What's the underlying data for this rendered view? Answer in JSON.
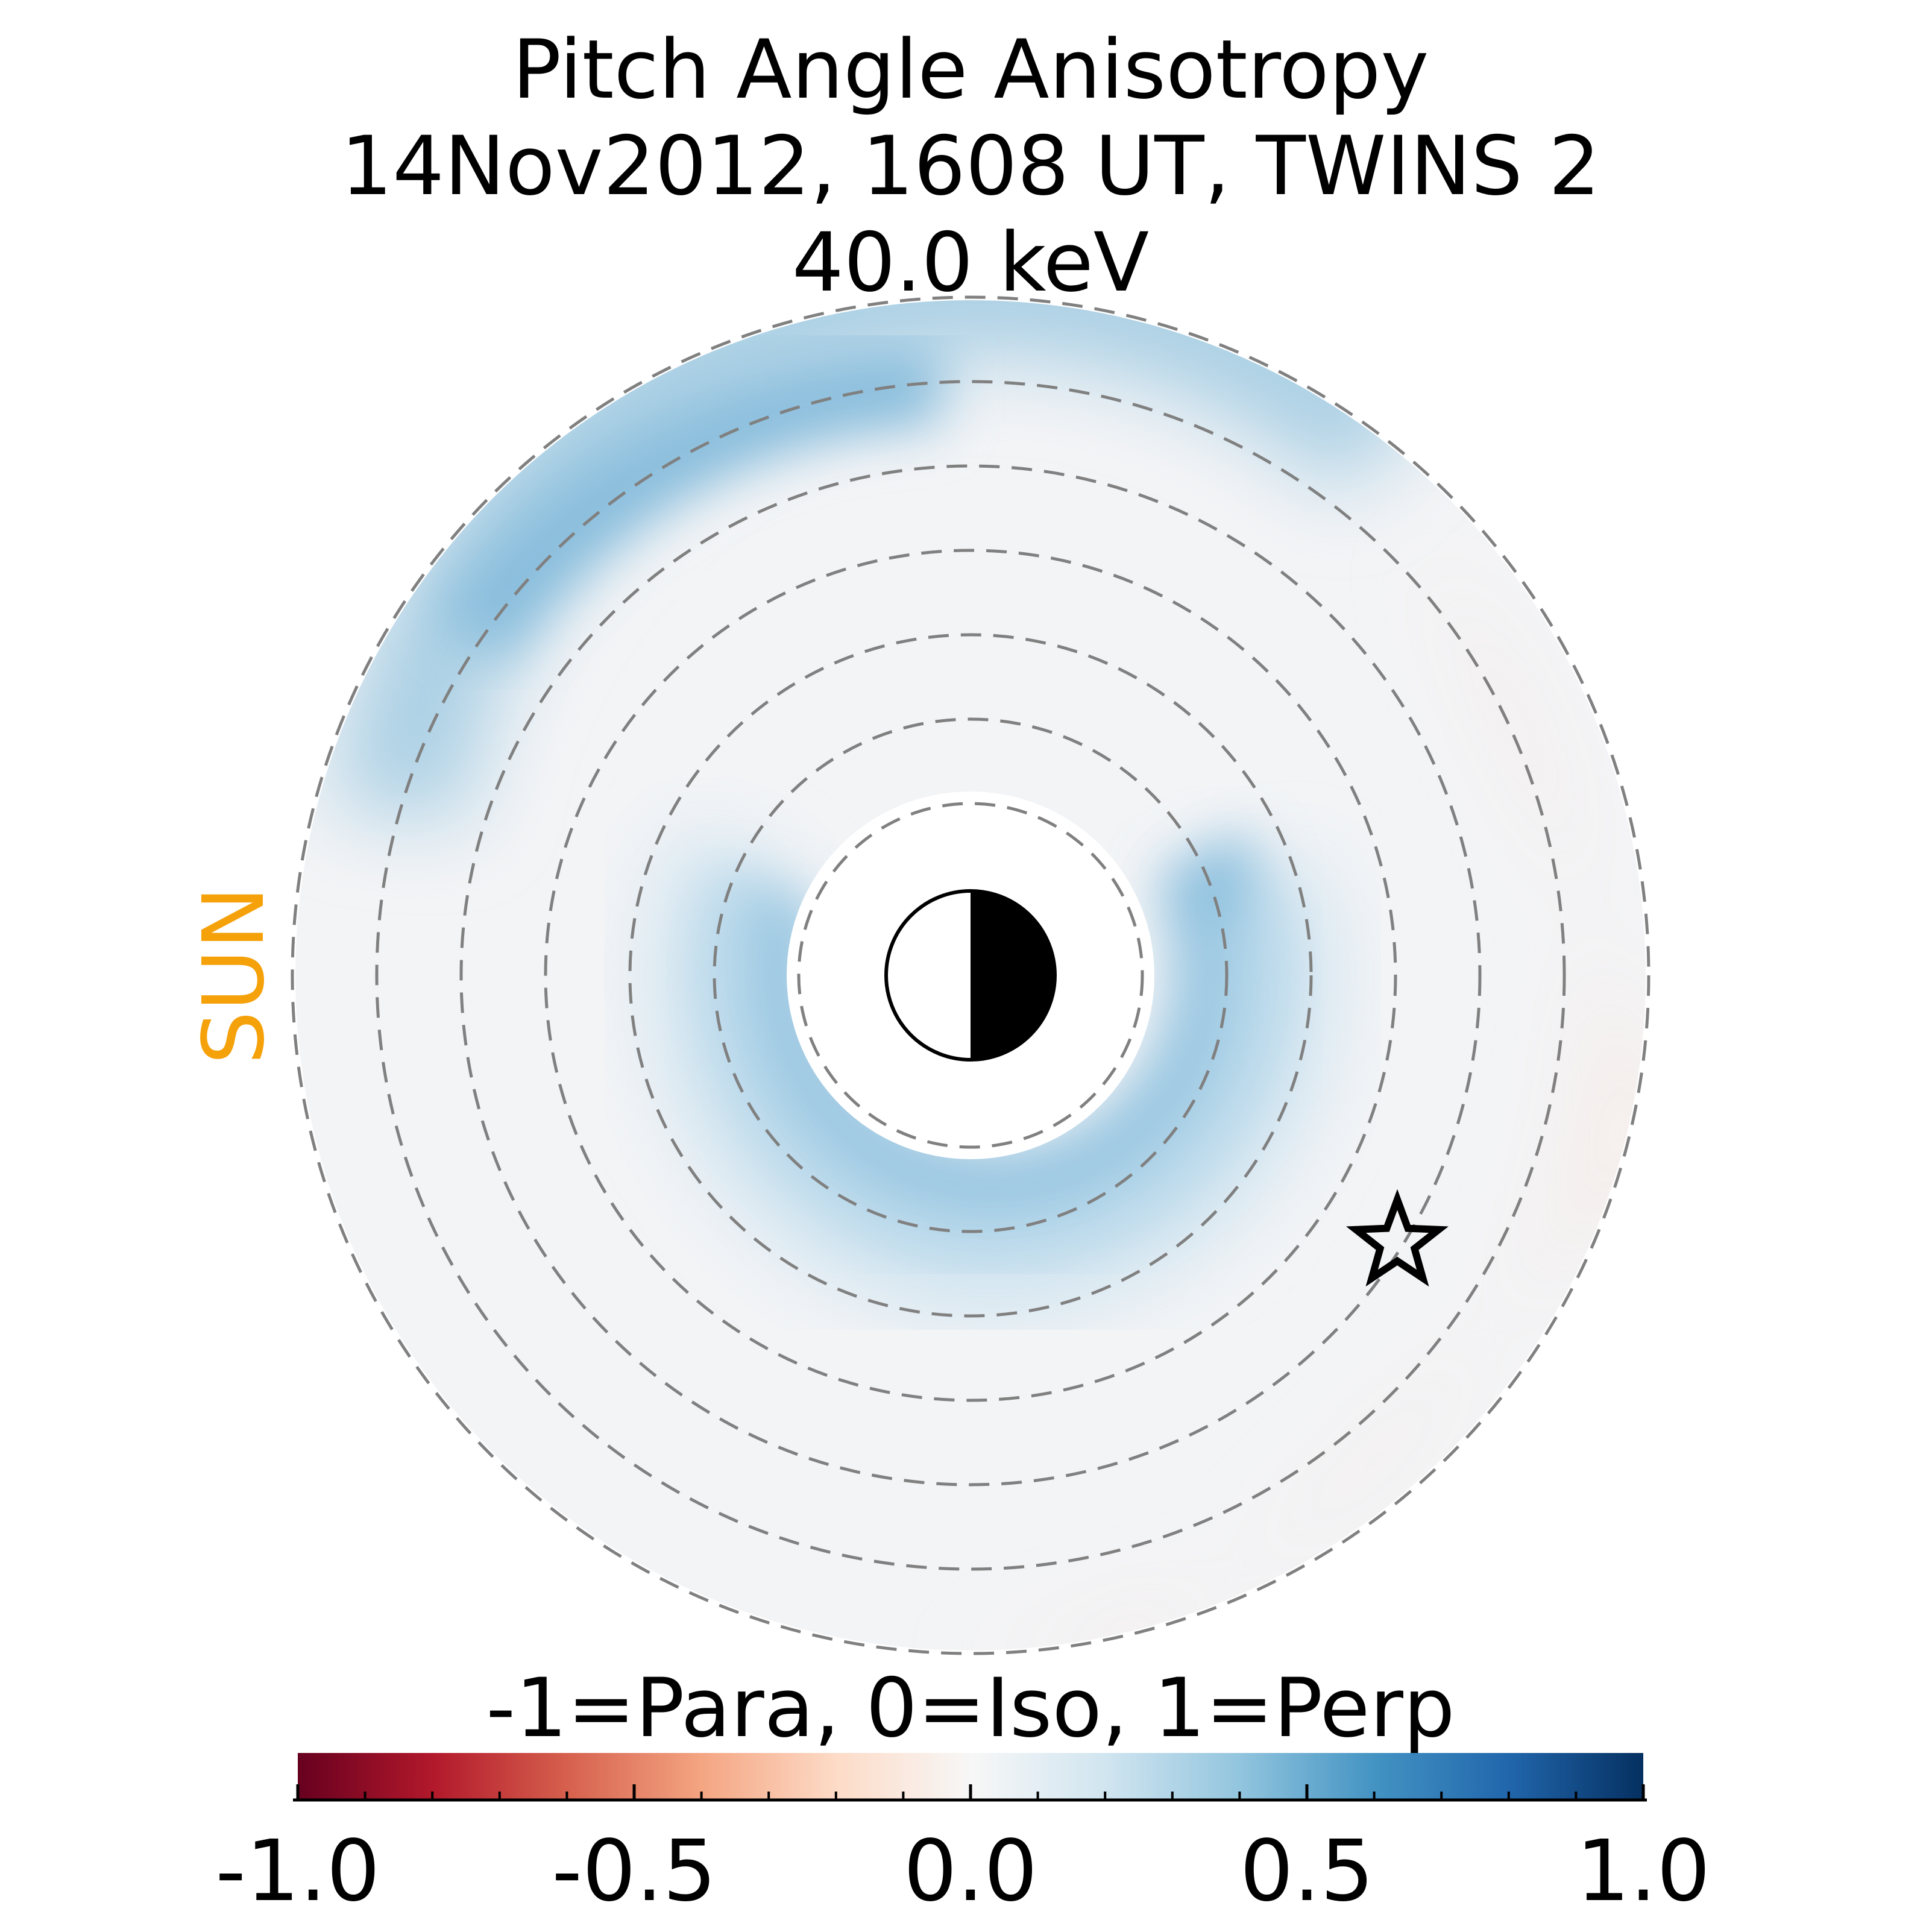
{
  "title": {
    "line1": "Pitch Angle Anisotropy",
    "line2": "14Nov2012, 1608 UT,  TWINS 2",
    "line3": "40.0 keV"
  },
  "sun_label": "SUN",
  "colors": {
    "sun_label": "#f5a10a",
    "ring_dash": "#808080",
    "background": "#ffffff"
  },
  "chart_data": {
    "type": "heatmap",
    "projection": "polar (equatorial plane, Sun to the left)",
    "value_range": [
      -1.0,
      1.0
    ],
    "colormap": "RdBu",
    "colorbar": {
      "label": "-1=Para, 0=Iso, 1=Perp",
      "ticks": [
        -1.0,
        -0.5,
        0.0,
        0.5,
        1.0
      ],
      "tick_labels": [
        "-1.0",
        "-0.5",
        "0.0",
        "0.5",
        "1.0"
      ],
      "minor_tick_step": 0.1,
      "stops": [
        "#67001f",
        "#b2182b",
        "#d6604d",
        "#f4a582",
        "#fddbc7",
        "#f7f7f7",
        "#d1e5f0",
        "#92c5de",
        "#4393c3",
        "#2166ac",
        "#053061"
      ]
    },
    "dashed_rings": 8,
    "features": [
      {
        "name": "inner enhancement band",
        "value": 0.45,
        "location": "near-Earth, strongest on night side below Earth"
      },
      {
        "name": "outer dayside enhancement",
        "value": 0.35,
        "location": "outer edge, upper-left (dayside/north)"
      },
      {
        "name": "background",
        "value": 0.02,
        "location": "most of the disk, near isotropic"
      },
      {
        "name": "nightside outer region",
        "value": -0.03,
        "location": "outer right and lower edge, slightly parallel"
      }
    ],
    "markers": [
      {
        "name": "Earth",
        "symbol": "half-filled circle (day side white, night side black)",
        "location": "center"
      },
      {
        "name": "spacecraft position",
        "symbol": "star",
        "location": "lower-right of disk"
      }
    ]
  }
}
